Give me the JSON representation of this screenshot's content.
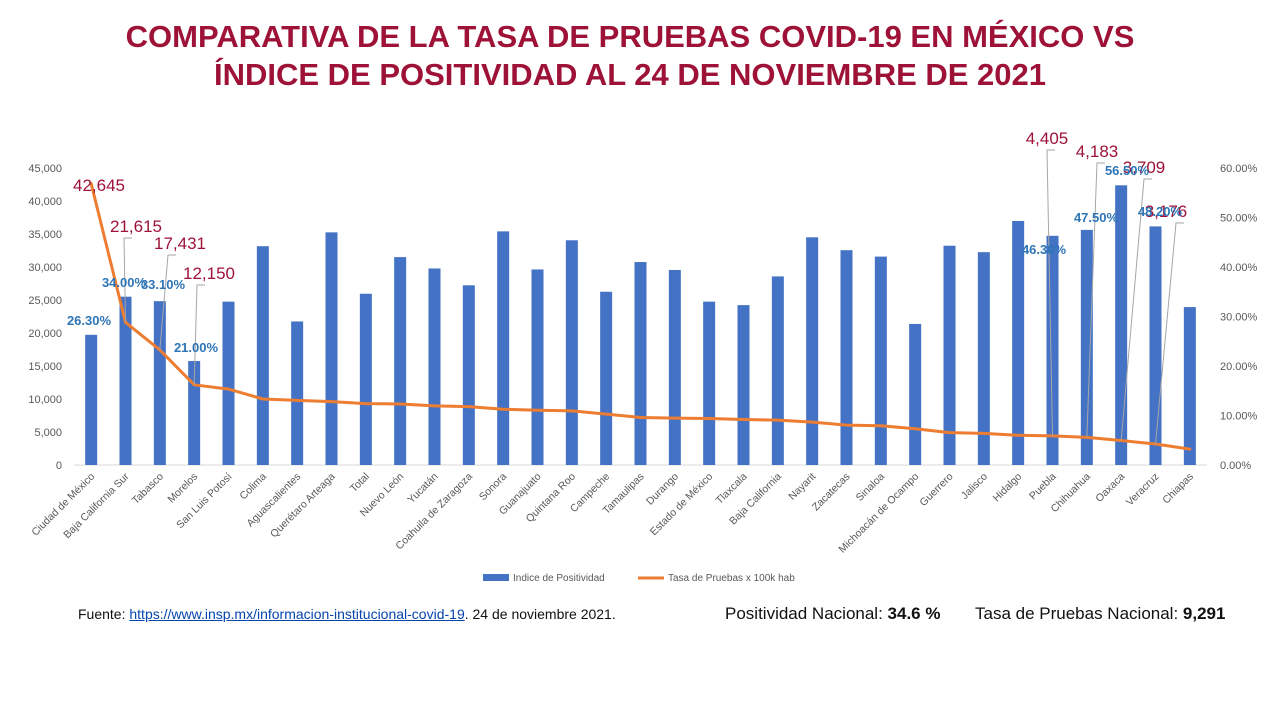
{
  "title": {
    "line1": "COMPARATIVA DE LA TASA DE PRUEBAS  COVID-19  EN MÉXICO VS",
    "line2": "ÍNDICE DE POSITIVIDAD  AL 24 DE NOVIEMBRE  DE 2021"
  },
  "colors": {
    "title": "#9e1238",
    "bars": "#4472c4",
    "line": "#ed7d31",
    "positivity_labels": "#2e75b6",
    "test_labels": "#9e1238"
  },
  "footer": {
    "source_prefix": "Fuente: ",
    "source_link": "https://www.insp.mx/informacion-institucional-covid-19",
    "source_suffix": ".  24 de noviembre  2021.",
    "positivity_label": "Positividad Nacional: ",
    "positivity_value": "34.6  %",
    "tests_label": "Tasa de Pruebas Nacional: ",
    "tests_value": "9,291"
  },
  "chart_data": {
    "type": "bar",
    "categories": [
      "Ciudad de México",
      "Baja California Sur",
      "Tabasco",
      "Morelos",
      "San Luis Potosí",
      "Colima",
      "Aguascalientes",
      "Querétaro Arteaga",
      "Total",
      "Nuevo León",
      "Yucatán",
      "Coahuila de Zaragoza",
      "Sonora",
      "Guanajuato",
      "Quintana Roo",
      "Campeche",
      "Tamaulipas",
      "Durango",
      "Estado de México",
      "Tlaxcala",
      "Baja California",
      "Nayarit",
      "Zacatecas",
      "Sinaloa",
      "Michoacán de Ocampo",
      "Guerrero",
      "Jalisco",
      "Hidalgo",
      "Puebla",
      "Chihuahua",
      "Oaxaca",
      "Veracruz",
      "Chiapas"
    ],
    "series": [
      {
        "name": "Indice de Positividad",
        "type": "bar",
        "axis": "right",
        "values": [
          26.3,
          34.0,
          33.1,
          21.0,
          33.0,
          44.2,
          29.0,
          47.0,
          34.6,
          42.0,
          39.7,
          36.3,
          47.2,
          39.5,
          45.4,
          35.0,
          41.0,
          39.4,
          33.0,
          32.3,
          38.1,
          46.0,
          43.4,
          42.1,
          28.5,
          44.3,
          43.0,
          49.3,
          46.3,
          47.5,
          56.5,
          48.2,
          31.9
        ],
        "data_labels": [
          "26.30%",
          "34.00%",
          "33.10%",
          "21.00%",
          "",
          "",
          "",
          "",
          "",
          "",
          "",
          "",
          "",
          "",
          "",
          "",
          "",
          "",
          "",
          "",
          "",
          "",
          "",
          "",
          "",
          "",
          "",
          "",
          "46.30%",
          "47.50%",
          "56.50%",
          "48.20%",
          ""
        ]
      },
      {
        "name": "Tasa de Pruebas x 100k hab",
        "type": "line",
        "axis": "left",
        "values": [
          42645,
          21615,
          17431,
          12150,
          11500,
          10000,
          9800,
          9600,
          9291,
          9250,
          8950,
          8850,
          8450,
          8300,
          8200,
          7700,
          7200,
          7100,
          7050,
          6900,
          6800,
          6500,
          6050,
          5950,
          5500,
          4900,
          4800,
          4500,
          4405,
          4183,
          3709,
          3176,
          2400
        ],
        "data_labels": [
          "42,645",
          "21,615",
          "17,431",
          "12,150",
          "",
          "",
          "",
          "",
          "",
          "",
          "",
          "",
          "",
          "",
          "",
          "",
          "",
          "",
          "",
          "",
          "",
          "",
          "",
          "",
          "",
          "",
          "",
          "",
          "4,405",
          "4,183",
          "3,709",
          "3,176",
          ""
        ]
      }
    ],
    "left_axis": {
      "ylim": [
        0,
        45000
      ],
      "ticks": [
        "0",
        "5,000",
        "10,000",
        "15,000",
        "20,000",
        "25,000",
        "30,000",
        "35,000",
        "40,000",
        "45,000"
      ]
    },
    "right_axis": {
      "ylim": [
        0,
        60
      ],
      "ticks": [
        "0.00%",
        "10.00%",
        "20.00%",
        "30.00%",
        "40.00%",
        "50.00%",
        "60.00%"
      ]
    },
    "legend": {
      "position": "bottom",
      "entries": [
        "Indice de Positividad",
        "Tasa de Pruebas x 100k hab"
      ]
    },
    "grid": false
  }
}
